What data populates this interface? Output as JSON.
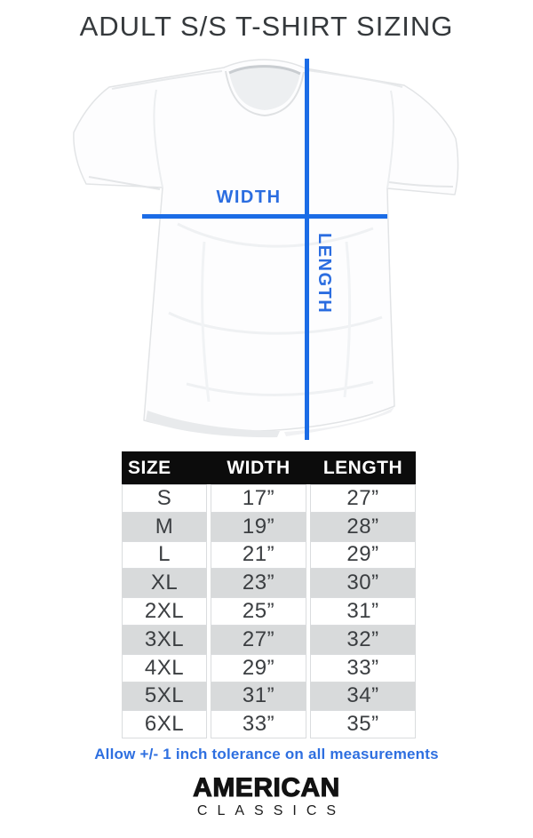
{
  "title": "ADULT S/S T-SHIRT SIZING",
  "diagram": {
    "width_label": "WIDTH",
    "length_label": "LENGTH",
    "line_color": "#1b6ce6",
    "label_color": "#2b6de0"
  },
  "table": {
    "headers": [
      "SIZE",
      "WIDTH",
      "LENGTH"
    ],
    "rows": [
      [
        "S",
        "17”",
        "27”"
      ],
      [
        "M",
        "19”",
        "28”"
      ],
      [
        "L",
        "21”",
        "29”"
      ],
      [
        "XL",
        "23”",
        "30”"
      ],
      [
        "2XL",
        "25”",
        "31”"
      ],
      [
        "3XL",
        "27”",
        "32”"
      ],
      [
        "4XL",
        "29”",
        "33”"
      ],
      [
        "5XL",
        "31”",
        "34”"
      ],
      [
        "6XL",
        "33”",
        "35”"
      ]
    ],
    "header_bg": "#0c0c0c",
    "alt_row_bg": "#d8dadb"
  },
  "note": "Allow +/- 1 inch tolerance on all measurements",
  "brand": {
    "line1": "AMERICAN",
    "line2": "CLASSICS"
  }
}
